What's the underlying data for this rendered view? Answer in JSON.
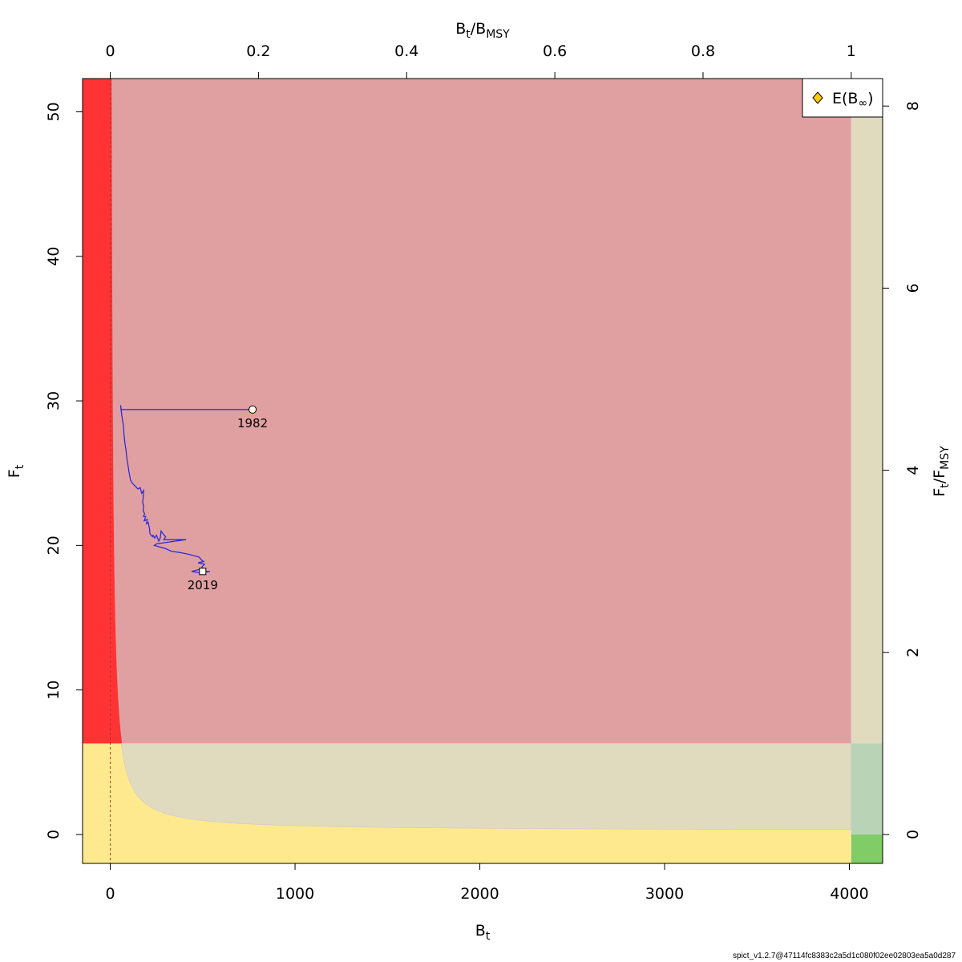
{
  "chart_data": {
    "type": "line",
    "title": "",
    "xlabel": "B_t",
    "ylabel": "F_t",
    "top_xlabel": "B_t/B_MSY",
    "right_ylabel": "F_t/F_MSY",
    "xlim": [
      -150,
      4180
    ],
    "ylim": [
      -2,
      52.3
    ],
    "x_ticks": [
      0,
      1000,
      2000,
      3000,
      4000
    ],
    "y_ticks": [
      0,
      10,
      20,
      30,
      40,
      50
    ],
    "top_ticks": [
      0,
      0.2,
      0.4,
      0.6,
      0.8,
      1
    ],
    "right_ticks": [
      0,
      2,
      4,
      6,
      8
    ],
    "ref_points": {
      "B_MSY": 4010,
      "F_MSY": 6.3
    },
    "zones": {
      "overfished_overfishing": "#e0a0a2",
      "bmsy_overfishing": "#e0dbbf",
      "collapse_area": "#ff3333",
      "overfished_ok": "#ffe98f",
      "underfished_zone": "#e0dbbf",
      "target_overlap": "#b8d3b6",
      "green_zone": "#80cc66"
    },
    "series": [
      {
        "color": "#2222dd",
        "x": [
          770,
          58,
          56,
          62,
          72,
          74,
          80,
          85,
          90,
          95,
          100,
          105,
          110,
          120,
          135,
          150,
          162,
          170,
          180,
          178,
          175,
          180,
          178,
          186,
          180,
          192,
          183,
          200,
          196,
          205,
          212,
          215,
          228,
          232,
          240,
          250,
          262,
          270,
          275,
          285,
          300,
          290,
          410,
          300,
          250,
          238,
          295,
          330,
          380,
          420,
          480,
          500,
          510,
          475,
          510,
          495,
          500,
          440,
          485,
          540,
          500
        ],
        "y": [
          29.4,
          29.4,
          29.7,
          29.0,
          28.2,
          27.7,
          27.0,
          26.6,
          26.0,
          25.6,
          25.2,
          24.8,
          24.5,
          24.3,
          24.1,
          23.9,
          24.0,
          23.6,
          23.8,
          23.3,
          23.0,
          22.7,
          22.4,
          22.2,
          22.0,
          22.0,
          21.7,
          21.8,
          21.5,
          21.6,
          21.2,
          20.8,
          20.6,
          20.7,
          20.5,
          20.7,
          20.3,
          20.5,
          21.0,
          20.8,
          20.6,
          20.4,
          20.4,
          20.2,
          20.1,
          20.0,
          19.8,
          19.6,
          19.5,
          19.4,
          19.2,
          18.9,
          18.9,
          18.8,
          18.7,
          18.5,
          18.4,
          18.2,
          18.1,
          18.2,
          18.2
        ]
      }
    ],
    "msy_curve": {
      "note_hidden": false
    },
    "points": [
      {
        "label": "1982",
        "x": 770,
        "y": 29.4,
        "shape": "circle"
      },
      {
        "label": "2019",
        "x": 500,
        "y": 18.2,
        "shape": "square"
      }
    ],
    "legend": {
      "position": "top-right",
      "entries": [
        {
          "label": "E(B∞)",
          "color": "#ffcc00",
          "shape": "diamond"
        }
      ]
    }
  },
  "labels": {
    "x_axis_base": "B",
    "x_axis_sub": "t",
    "y_axis_base": "F",
    "y_axis_sub": "t",
    "top_axis_base1": "B",
    "top_axis_sub1": "t",
    "top_axis_mid": "/B",
    "top_axis_sub2": "MSY",
    "right_axis_base1": "F",
    "right_axis_sub1": "t",
    "right_axis_mid": "/F",
    "right_axis_sub2": "MSY",
    "legend_base": "E(B",
    "legend_sub": "∞",
    "legend_close": ")"
  },
  "footer": "spict_v1.2.7@47114fc8383c2a5d1c080f02ee02803ea5a0d287"
}
